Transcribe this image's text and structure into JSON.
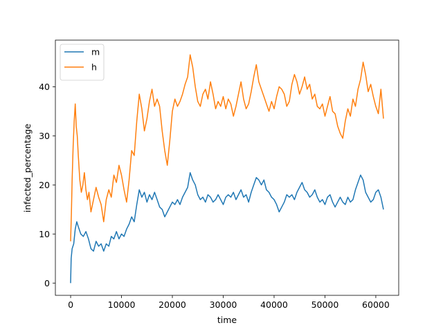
{
  "chart_data": {
    "type": "line",
    "title": "",
    "xlabel": "time",
    "ylabel": "infected_percentage",
    "xlim": [
      -3000,
      64500
    ],
    "ylim": [
      -2.5,
      49.5
    ],
    "xticks": [
      0,
      10000,
      20000,
      30000,
      40000,
      50000,
      60000
    ],
    "yticks": [
      0,
      10,
      20,
      30,
      40
    ],
    "grid": false,
    "legend_position": "upper-left",
    "series": [
      {
        "name": "m",
        "color": "#1f77b4",
        "points": [
          [
            0,
            0
          ],
          [
            100,
            5
          ],
          [
            300,
            7
          ],
          [
            600,
            8
          ],
          [
            900,
            11
          ],
          [
            1200,
            12.5
          ],
          [
            1500,
            11.5
          ],
          [
            2000,
            10
          ],
          [
            2500,
            9.5
          ],
          [
            3000,
            10.5
          ],
          [
            3500,
            9
          ],
          [
            4000,
            7
          ],
          [
            4500,
            6.5
          ],
          [
            5000,
            8.5
          ],
          [
            5500,
            7.5
          ],
          [
            6000,
            8
          ],
          [
            6500,
            6.5
          ],
          [
            7000,
            8
          ],
          [
            7500,
            7.5
          ],
          [
            8000,
            9.5
          ],
          [
            8500,
            9
          ],
          [
            9000,
            10.5
          ],
          [
            9500,
            9
          ],
          [
            10000,
            10
          ],
          [
            10500,
            9.5
          ],
          [
            11000,
            11
          ],
          [
            11500,
            12
          ],
          [
            12000,
            13.5
          ],
          [
            12500,
            12.5
          ],
          [
            13000,
            16
          ],
          [
            13500,
            19
          ],
          [
            14000,
            17.5
          ],
          [
            14500,
            18.5
          ],
          [
            15000,
            16.5
          ],
          [
            15500,
            18
          ],
          [
            16000,
            17
          ],
          [
            16500,
            18.5
          ],
          [
            17000,
            17
          ],
          [
            17500,
            15.5
          ],
          [
            18000,
            15
          ],
          [
            18500,
            13.5
          ],
          [
            19000,
            14.5
          ],
          [
            19500,
            15.5
          ],
          [
            20000,
            16.5
          ],
          [
            20500,
            16
          ],
          [
            21000,
            17
          ],
          [
            21500,
            16
          ],
          [
            22000,
            17.5
          ],
          [
            22500,
            18.5
          ],
          [
            23000,
            19.5
          ],
          [
            23500,
            22.5
          ],
          [
            24000,
            21
          ],
          [
            24500,
            20
          ],
          [
            25000,
            18
          ],
          [
            25500,
            17
          ],
          [
            26000,
            17.5
          ],
          [
            26500,
            16.5
          ],
          [
            27000,
            18
          ],
          [
            27500,
            17.5
          ],
          [
            28000,
            16.5
          ],
          [
            28500,
            17
          ],
          [
            29000,
            18
          ],
          [
            29500,
            17
          ],
          [
            30000,
            16
          ],
          [
            30500,
            17.5
          ],
          [
            31000,
            18
          ],
          [
            31500,
            17.5
          ],
          [
            32000,
            18.5
          ],
          [
            32500,
            17
          ],
          [
            33000,
            18
          ],
          [
            33500,
            19
          ],
          [
            34000,
            17.5
          ],
          [
            34500,
            18
          ],
          [
            35000,
            16.5
          ],
          [
            35500,
            18.5
          ],
          [
            36000,
            20
          ],
          [
            36500,
            21.5
          ],
          [
            37000,
            21
          ],
          [
            37500,
            20
          ],
          [
            38000,
            21
          ],
          [
            38500,
            19
          ],
          [
            39000,
            18.5
          ],
          [
            39500,
            17.5
          ],
          [
            40000,
            17
          ],
          [
            40500,
            16
          ],
          [
            41000,
            14.5
          ],
          [
            41500,
            15.5
          ],
          [
            42000,
            16.5
          ],
          [
            42500,
            18
          ],
          [
            43000,
            17.5
          ],
          [
            43500,
            18
          ],
          [
            44000,
            17
          ],
          [
            44500,
            18.5
          ],
          [
            45000,
            19.5
          ],
          [
            45500,
            20.5
          ],
          [
            46000,
            19
          ],
          [
            46500,
            18.5
          ],
          [
            47000,
            17.5
          ],
          [
            47500,
            18
          ],
          [
            48000,
            19
          ],
          [
            48500,
            17.5
          ],
          [
            49000,
            16.5
          ],
          [
            49500,
            17
          ],
          [
            50000,
            16
          ],
          [
            50500,
            17.5
          ],
          [
            51000,
            18
          ],
          [
            51500,
            16.5
          ],
          [
            52000,
            15.5
          ],
          [
            52500,
            16.5
          ],
          [
            53000,
            17.5
          ],
          [
            53500,
            16.5
          ],
          [
            54000,
            16
          ],
          [
            54500,
            17.5
          ],
          [
            55000,
            16.5
          ],
          [
            55500,
            17
          ],
          [
            56000,
            19
          ],
          [
            56500,
            20.5
          ],
          [
            57000,
            22
          ],
          [
            57500,
            21
          ],
          [
            58000,
            18.5
          ],
          [
            58500,
            17.5
          ],
          [
            59000,
            16.5
          ],
          [
            59500,
            17
          ],
          [
            60000,
            18.5
          ],
          [
            60500,
            19
          ],
          [
            61000,
            17.5
          ],
          [
            61500,
            15
          ]
        ]
      },
      {
        "name": "h",
        "color": "#ff7f0e",
        "points": [
          [
            0,
            8.5
          ],
          [
            150,
            14
          ],
          [
            300,
            21
          ],
          [
            500,
            28
          ],
          [
            700,
            33
          ],
          [
            900,
            36.5
          ],
          [
            1100,
            32
          ],
          [
            1300,
            30
          ],
          [
            1500,
            26
          ],
          [
            1800,
            21
          ],
          [
            2100,
            18.5
          ],
          [
            2400,
            20
          ],
          [
            2700,
            22.5
          ],
          [
            3000,
            19
          ],
          [
            3300,
            17
          ],
          [
            3600,
            18.5
          ],
          [
            4000,
            14.5
          ],
          [
            4500,
            17
          ],
          [
            5000,
            19.5
          ],
          [
            5500,
            17.5
          ],
          [
            6000,
            16
          ],
          [
            6500,
            12.5
          ],
          [
            7000,
            17
          ],
          [
            7500,
            19
          ],
          [
            8000,
            17.5
          ],
          [
            8500,
            22
          ],
          [
            9000,
            20.5
          ],
          [
            9500,
            24
          ],
          [
            10000,
            22
          ],
          [
            10500,
            19
          ],
          [
            11000,
            16.5
          ],
          [
            11500,
            21
          ],
          [
            12000,
            27
          ],
          [
            12500,
            26
          ],
          [
            13000,
            33
          ],
          [
            13500,
            38.5
          ],
          [
            14000,
            35.5
          ],
          [
            14500,
            31
          ],
          [
            15000,
            33.5
          ],
          [
            15500,
            37
          ],
          [
            16000,
            39.5
          ],
          [
            16500,
            36
          ],
          [
            17000,
            37.5
          ],
          [
            17500,
            36
          ],
          [
            18000,
            31
          ],
          [
            18500,
            27
          ],
          [
            19000,
            24
          ],
          [
            19500,
            29
          ],
          [
            20000,
            35
          ],
          [
            20500,
            37.5
          ],
          [
            21000,
            36
          ],
          [
            21500,
            37
          ],
          [
            22000,
            38.5
          ],
          [
            22500,
            40.5
          ],
          [
            23000,
            42
          ],
          [
            23500,
            46.5
          ],
          [
            24000,
            44
          ],
          [
            24500,
            40
          ],
          [
            25000,
            37
          ],
          [
            25500,
            36
          ],
          [
            26000,
            38.5
          ],
          [
            26500,
            39.5
          ],
          [
            27000,
            37.5
          ],
          [
            27500,
            41
          ],
          [
            28000,
            38.5
          ],
          [
            28500,
            35.5
          ],
          [
            29000,
            37
          ],
          [
            29500,
            36
          ],
          [
            30000,
            38
          ],
          [
            30500,
            35.5
          ],
          [
            31000,
            37.5
          ],
          [
            31500,
            36.5
          ],
          [
            32000,
            34
          ],
          [
            32500,
            36
          ],
          [
            33000,
            38.5
          ],
          [
            33500,
            41
          ],
          [
            34000,
            37.5
          ],
          [
            34500,
            35.5
          ],
          [
            35000,
            36.5
          ],
          [
            35500,
            39
          ],
          [
            36000,
            42
          ],
          [
            36500,
            44.5
          ],
          [
            37000,
            41
          ],
          [
            37500,
            39.5
          ],
          [
            38000,
            38
          ],
          [
            38500,
            36.5
          ],
          [
            39000,
            35
          ],
          [
            39500,
            37
          ],
          [
            40000,
            35.5
          ],
          [
            40500,
            38
          ],
          [
            41000,
            40
          ],
          [
            41500,
            39.5
          ],
          [
            42000,
            38.5
          ],
          [
            42500,
            36
          ],
          [
            43000,
            37
          ],
          [
            43500,
            40.5
          ],
          [
            44000,
            42.5
          ],
          [
            44500,
            41
          ],
          [
            45000,
            38.5
          ],
          [
            45500,
            40
          ],
          [
            46000,
            42
          ],
          [
            46500,
            39.5
          ],
          [
            47000,
            40.5
          ],
          [
            47500,
            37.5
          ],
          [
            48000,
            38.5
          ],
          [
            48500,
            36
          ],
          [
            49000,
            35.5
          ],
          [
            49500,
            36.5
          ],
          [
            50000,
            34
          ],
          [
            50500,
            36
          ],
          [
            51000,
            38
          ],
          [
            51500,
            35
          ],
          [
            52000,
            34.5
          ],
          [
            52500,
            32
          ],
          [
            53000,
            30.5
          ],
          [
            53500,
            29.5
          ],
          [
            54000,
            33
          ],
          [
            54500,
            35.5
          ],
          [
            55000,
            34
          ],
          [
            55500,
            37.5
          ],
          [
            56000,
            36
          ],
          [
            56500,
            39.5
          ],
          [
            57000,
            41.5
          ],
          [
            57500,
            45
          ],
          [
            58000,
            42.5
          ],
          [
            58500,
            39
          ],
          [
            59000,
            40.5
          ],
          [
            59500,
            38
          ],
          [
            60000,
            36
          ],
          [
            60500,
            34.5
          ],
          [
            61000,
            39.5
          ],
          [
            61500,
            33.5
          ]
        ]
      }
    ]
  }
}
